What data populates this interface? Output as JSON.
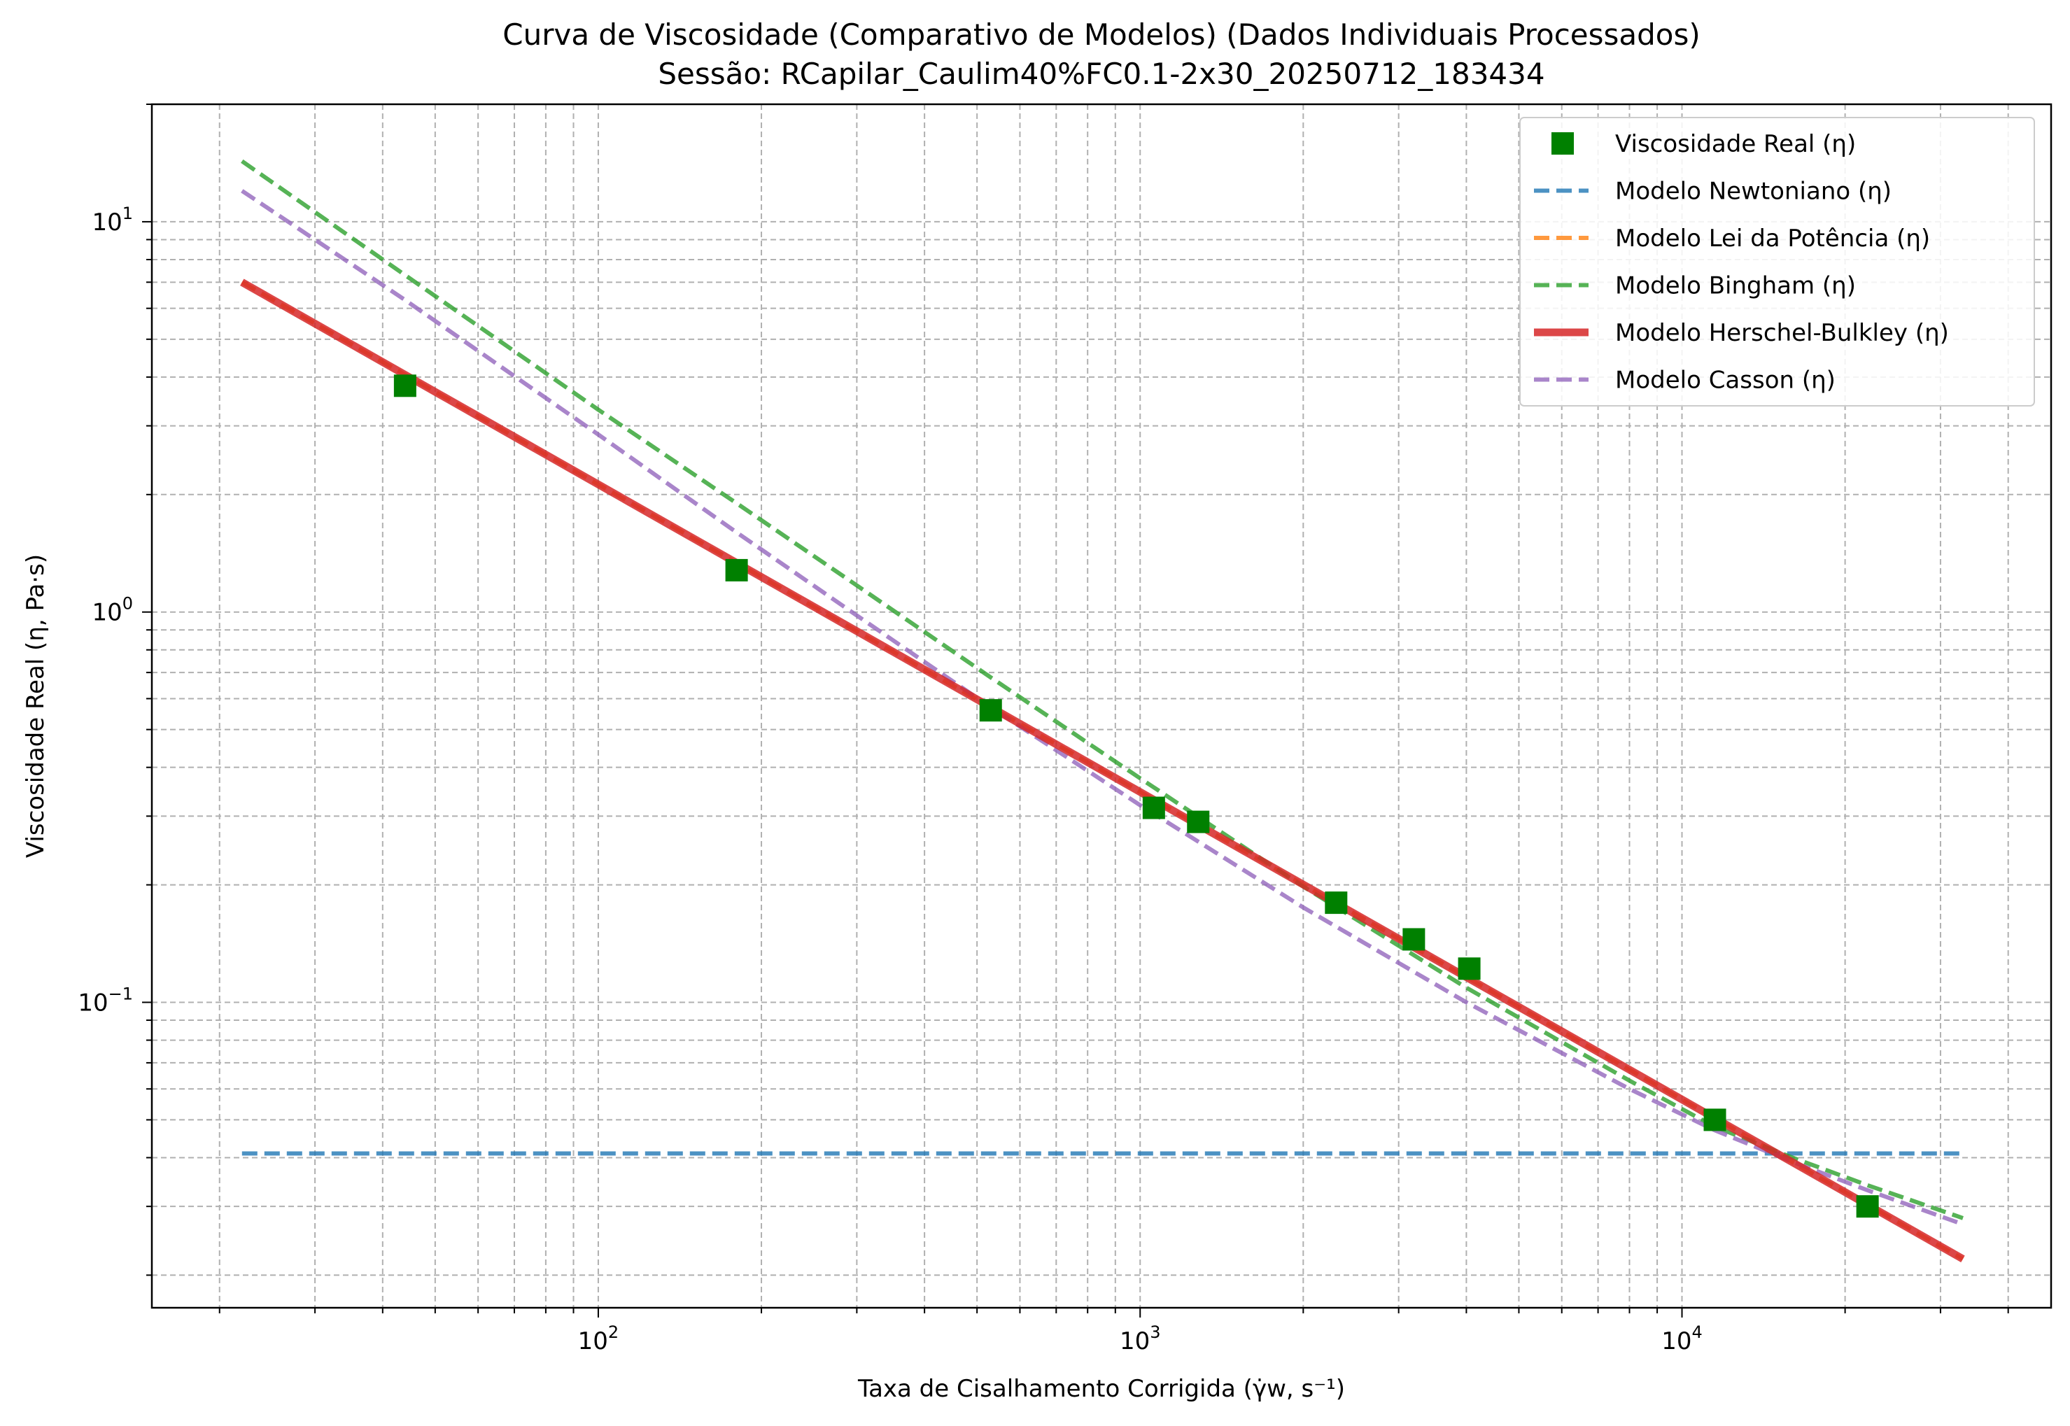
{
  "chart_data": {
    "type": "line",
    "title": "Curva de Viscosidade (Comparativo de Modelos) (Dados Individuais Processados)",
    "subtitle": "Sessão: RCapilar_Caulim40%FC0.1-2x30_20250712_183434",
    "xlabel": "Taxa de Cisalhamento Corrigida (γ̇w, s⁻¹)",
    "ylabel": "Viscosidade Real (η, Pa·s)",
    "xscale": "log",
    "yscale": "log",
    "xlim": [
      15,
      48000
    ],
    "ylim": [
      0.0165,
      20
    ],
    "grid": true,
    "legend_position": "top-right",
    "x_ticks": [
      {
        "value": 100,
        "base": "10",
        "exp": "2"
      },
      {
        "value": 1000,
        "base": "10",
        "exp": "3"
      },
      {
        "value": 10000,
        "base": "10",
        "exp": "4"
      }
    ],
    "y_ticks": [
      {
        "value": 0.1,
        "base": "10",
        "exp": "−1"
      },
      {
        "value": 1,
        "base": "10",
        "exp": "0"
      },
      {
        "value": 10,
        "base": "10",
        "exp": "1"
      }
    ],
    "series": [
      {
        "name": "Viscosidade Real (η)",
        "kind": "markers",
        "color": "#008000",
        "x": [
          44,
          180,
          530,
          1060,
          1280,
          2300,
          3200,
          4050,
          11500,
          22000
        ],
        "y": [
          3.8,
          1.28,
          0.56,
          0.315,
          0.29,
          0.18,
          0.145,
          0.122,
          0.05,
          0.03
        ]
      },
      {
        "name": "Modelo Newtoniano (η)",
        "kind": "dashed",
        "color": "#1f77b4",
        "x": [
          22,
          33000
        ],
        "y": [
          0.041,
          0.041
        ]
      },
      {
        "name": "Modelo Lei da Potência (η)",
        "kind": "dashed",
        "color": "#ff7f0e",
        "x": [
          22,
          33000
        ],
        "y": [
          7.0,
          0.022
        ]
      },
      {
        "name": "Modelo Bingham (η)",
        "kind": "dashed",
        "color": "#2ca02c",
        "x": [
          22,
          44,
          100,
          180,
          300,
          530,
          1000,
          2000,
          4000,
          8000,
          11500,
          16000,
          22000,
          33000
        ],
        "y": [
          14.3,
          7.3,
          3.3,
          1.9,
          1.17,
          0.68,
          0.375,
          0.198,
          0.109,
          0.063,
          0.048,
          0.04,
          0.034,
          0.028
        ]
      },
      {
        "name": "Modelo Herschel-Bulkley (η)",
        "kind": "solid",
        "color": "#d62728",
        "x": [
          22,
          33000
        ],
        "y": [
          7.0,
          0.022
        ]
      },
      {
        "name": "Modelo Casson (η)",
        "kind": "dashed",
        "color": "#9467bd",
        "x": [
          22,
          44,
          100,
          180,
          300,
          530,
          1000,
          2000,
          4000,
          8000,
          11500,
          16000,
          22000,
          33000
        ],
        "y": [
          12.0,
          6.3,
          2.85,
          1.6,
          0.98,
          0.57,
          0.32,
          0.175,
          0.1,
          0.06,
          0.047,
          0.039,
          0.033,
          0.027
        ]
      }
    ]
  }
}
